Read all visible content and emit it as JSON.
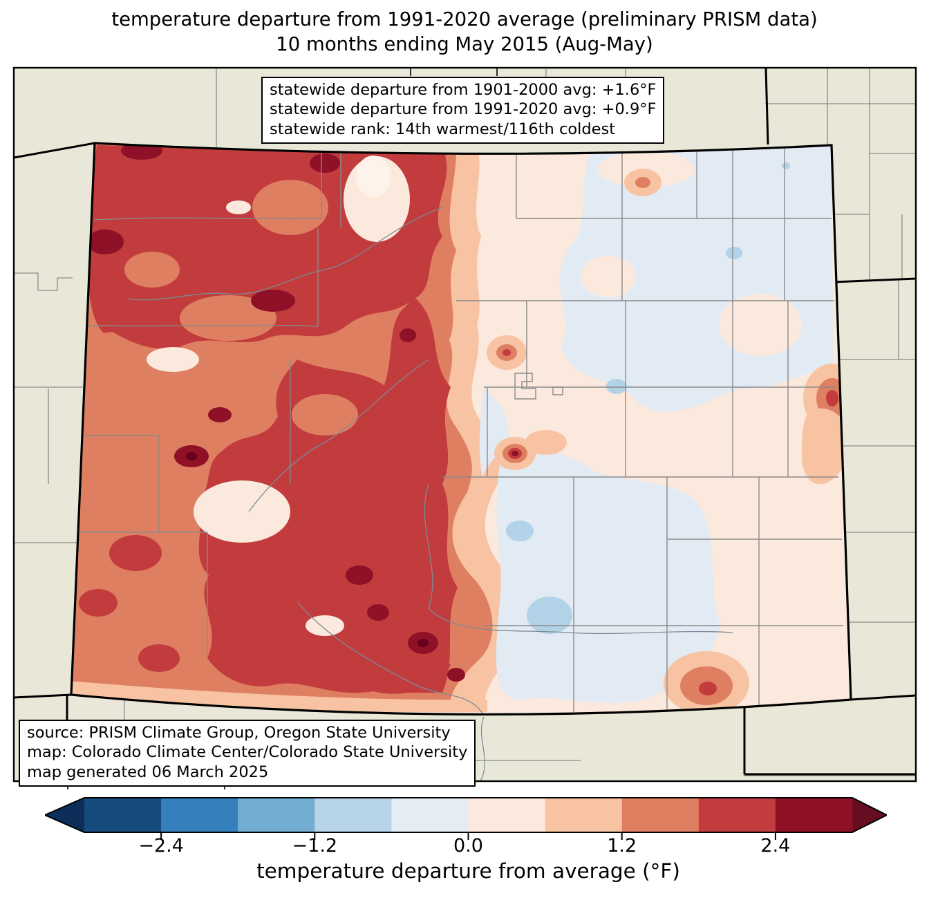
{
  "title": {
    "line1": "temperature departure from 1991-2020 average (preliminary PRISM data)",
    "line2": "10 months ending May 2015 (Aug-May)"
  },
  "stats_box": {
    "line1": "statewide departure from 1901-2000 avg: +1.6°F",
    "line2": "statewide departure from 1991-2020 avg: +0.9°F",
    "line3": "statewide rank: 14th warmest/116th coldest"
  },
  "source_box": {
    "line1": "source: PRISM Climate Group, Oregon State University",
    "line2": "map: Colorado Climate Center/Colorado State University",
    "line3": "map generated 06 March 2025"
  },
  "colorbar": {
    "label": "temperature departure from average (°F)",
    "range_min": -3.0,
    "range_max": 3.0,
    "bin_size": 0.6,
    "bin_colors": [
      "#174a7c",
      "#3580bc",
      "#73aed2",
      "#b7d4e8",
      "#e5edf4",
      "#fbe9dd",
      "#f8c3a3",
      "#df7f62",
      "#c23b3d",
      "#8e1127"
    ],
    "under_color": "#0c2e58",
    "over_color": "#660d20",
    "ticks": [
      {
        "v": -2.4,
        "label": "−2.4"
      },
      {
        "v": -1.2,
        "label": "−1.2"
      },
      {
        "v": 0.0,
        "label": "0.0"
      },
      {
        "v": 1.2,
        "label": "1.2"
      },
      {
        "v": 2.4,
        "label": "2.4"
      }
    ]
  },
  "palette": {
    "background_land": "#e9e8d8",
    "county_line": "#8a8a8a",
    "state_border": "#000000",
    "neg2": "#b2d3e7",
    "neg1": "#e2eaf3",
    "pos1": "#fbe9dd",
    "pos1_light": "#fdf3ea",
    "pos2": "#f8c3a3",
    "pos3": "#df7f62",
    "pos4": "#c23b3d",
    "pos5": "#8e1127",
    "pos6": "#67001f"
  }
}
